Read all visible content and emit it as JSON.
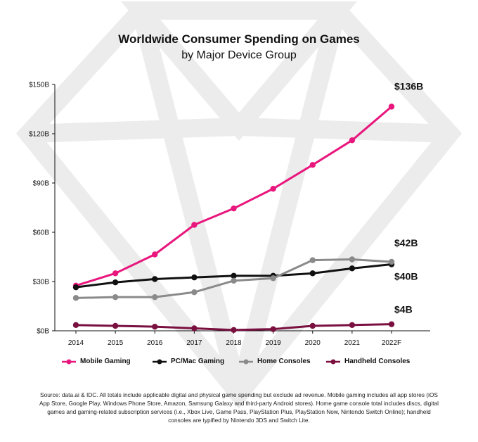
{
  "title": "Worldwide Consumer Spending on Games",
  "subtitle": "by Major Device Group",
  "source": "Source: data.ai & IDC. All totals include applicable digital and physical game spending but exclude ad revenue. Mobile gaming includes all app stores (iOS App Store, Google Play, Windows Phone Store, Amazon, Samsung Galaxy and third-party Android stores). Home game console total includes discs, digital games and gaming-related subscription services (i.e., Xbox Live, Game Pass, PlayStation Plus, PlayStation Now, Nintendo Switch Online); handheld consoles are typified by Nintendo 3DS and Switch Lite.",
  "chart_data": {
    "type": "line",
    "x": [
      "2014",
      "2015",
      "2016",
      "2017",
      "2018",
      "2019",
      "2020",
      "2021",
      "2022F"
    ],
    "y_ticks": [
      "$0B",
      "$30B",
      "$60B",
      "$90B",
      "$120B",
      "$150B"
    ],
    "ylim": [
      0,
      150
    ],
    "grid": false,
    "legend_position": "bottom",
    "series": [
      {
        "name": "Mobile Gaming",
        "color": "#e8167d",
        "values": [
          27.5,
          35,
          46.5,
          64.5,
          74.5,
          86.5,
          101,
          116,
          136.5
        ],
        "end_label": "$136B"
      },
      {
        "name": "PC/Mac Gaming",
        "color": "#111111",
        "values": [
          26.5,
          29.5,
          31.5,
          32.5,
          33.5,
          33.5,
          35,
          38,
          40.5
        ],
        "end_label": "$40B"
      },
      {
        "name": "Home Consoles",
        "color": "#8a8a8a",
        "values": [
          20,
          20.5,
          20.5,
          23.5,
          30.5,
          32,
          43,
          43.5,
          42
        ],
        "end_label": "$42B"
      },
      {
        "name": "Handheld Consoles",
        "color": "#7a1040",
        "values": [
          3.5,
          3,
          2.5,
          1.5,
          0.5,
          1,
          3,
          3.5,
          4
        ],
        "end_label": "$4B"
      }
    ]
  }
}
